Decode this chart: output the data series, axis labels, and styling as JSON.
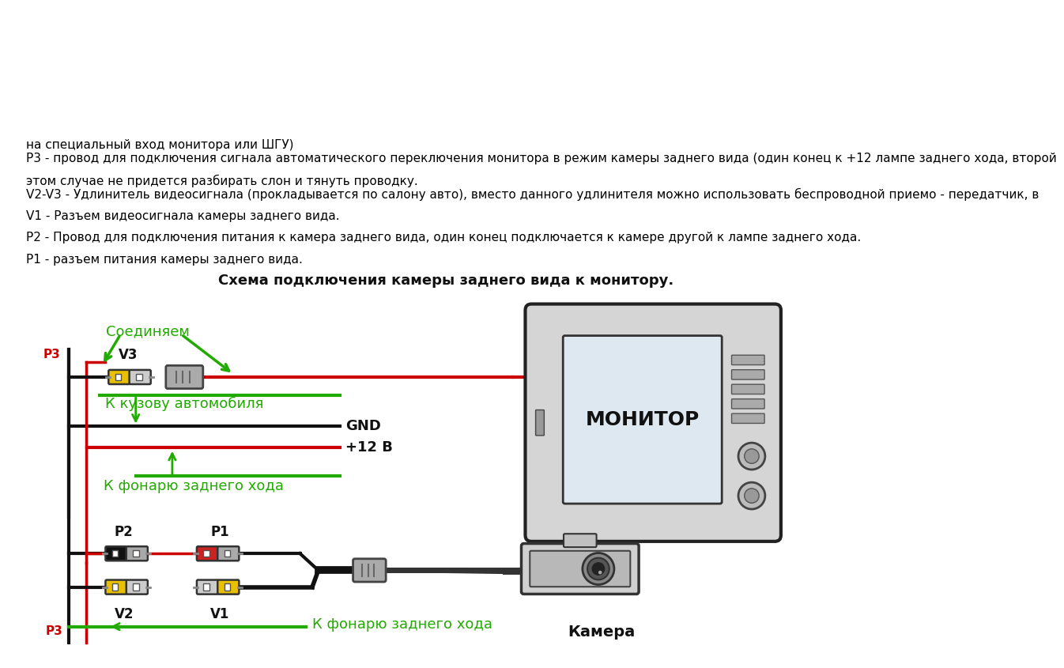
{
  "bg_color": "#ffffff",
  "diagram_title": "Схема подключения камеры заднего вида к монитору.",
  "legend_lines": [
    "P1 - разъем питания камеры заднего вида.",
    "P2 - Провод для подключения питания к камера заднего вида, один конец подключается к камере другой к лампе заднего хода.",
    "V1 - Разъем видеосигнала камеры заднего вида.",
    "V2-V3 - Удлинитель видеосигнала (прокладывается по салону авто), вместо данного удлинителя можно использовать беспроводной приемо - передатчик, в этом случае не придется разбирать слон и тянуть проводку.",
    "P3 - провод для подключения сигнала автоматического переключения монитора в режим камеры заднего вида (один конец к +12 лампе заднего хода, второй на специальный вход монитора или ШГУ)"
  ],
  "green_color": "#22aa00",
  "red_color": "#cc0000",
  "black_color": "#111111",
  "yellow_color": "#e8c000",
  "text_color": "#000000",
  "label_p3_top": "P3",
  "label_k_fonarju": "К фонарю заднего хода",
  "label_v2": "V2",
  "label_v1": "V1",
  "label_p2": "P2",
  "label_p1": "P1",
  "label_camera": "Камера",
  "label_k_fonarju2": "К фонарю заднего хода",
  "label_12v": "+12 В",
  "label_gnd": "GND",
  "label_k_kuzovu": "К кузову автомобиля",
  "label_v3": "V3",
  "label_soedinjaem": "Соединяем",
  "label_monitor": "МОНИТОР"
}
